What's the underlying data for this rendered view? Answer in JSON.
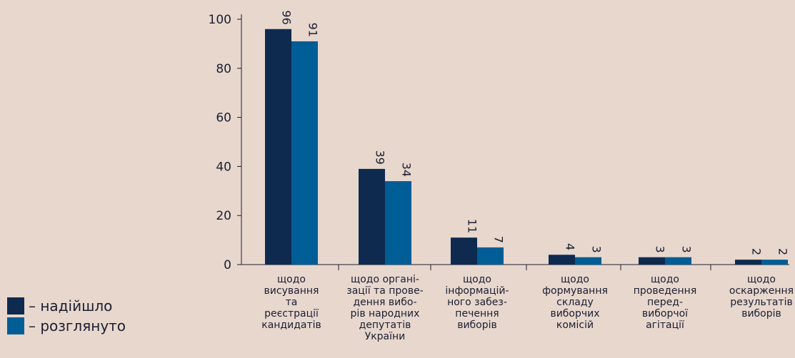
{
  "chart_data": {
    "type": "bar",
    "categories": [
      "щодо\nвисування\nта\nреєстрації\nкандидатів",
      "щодо органі-\nзації та прове-\nдення вибо-\nрів народних\nдепутатів\nУкраїни",
      "щодо\nінформацій-\nного забез-\nпечення\nвиборів",
      "щодо\nформування\nскладу\nвиборчих\nкомісій",
      "щодо\nпроведення\nперед-\nвиборчої\nагітації",
      "щодо\nоскарження\nрезультатів\nвиборів"
    ],
    "series": [
      {
        "name": "– надійшло",
        "values": [
          96,
          39,
          11,
          4,
          3,
          2
        ],
        "color": "#0f2a4f"
      },
      {
        "name": "– розглянуто",
        "values": [
          91,
          34,
          7,
          3,
          3,
          2
        ],
        "color": "#005d95"
      }
    ],
    "yticks": [
      "0",
      "20",
      "40",
      "60",
      "80",
      "100"
    ],
    "ylim": [
      0,
      100
    ],
    "grid": false,
    "legend_position": "bottom-left",
    "title": "",
    "xlabel": "",
    "ylabel": ""
  }
}
